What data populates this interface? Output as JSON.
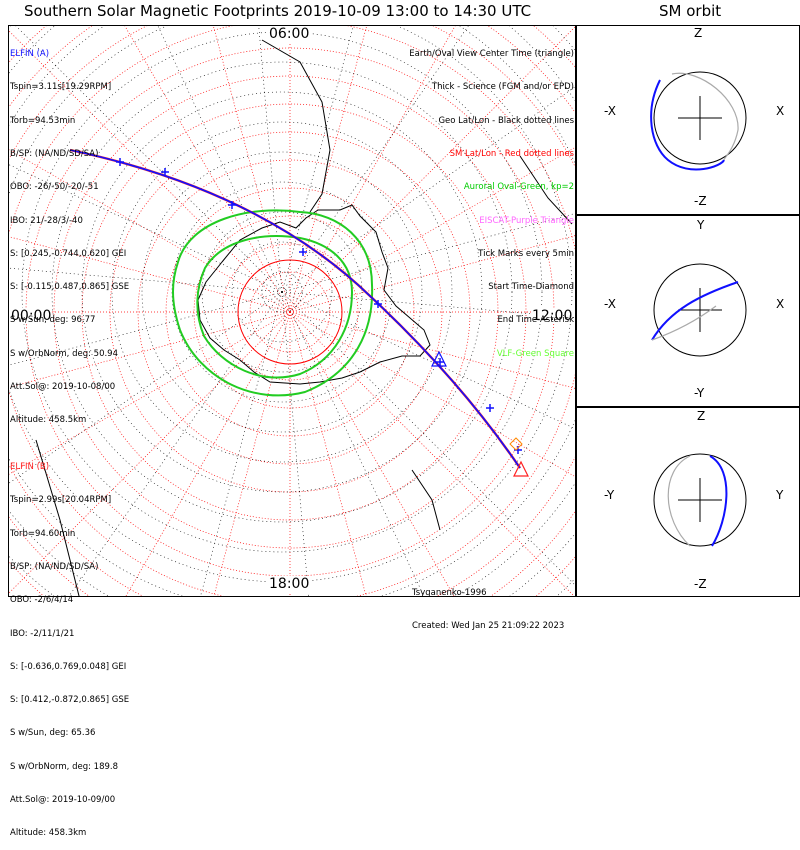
{
  "title": "Southern Solar Magnetic Footprints 2019-10-09 13:00 to 14:30 UTC",
  "orbit_title": "SM orbit",
  "hour_labels": {
    "top": "06:00",
    "left": "00:00",
    "right": "12:00",
    "bottom": "18:00"
  },
  "satellite_a": {
    "name": "ELFIN (A)",
    "color": "#1010ff",
    "lines": [
      "Tspin=3.11s[19.29RPM]",
      "Torb=94.53min",
      "B/SP: (NA/ND/SD/SA)",
      "OBO: -26/-50/-20/-51",
      "IBO: 21/-28/3/-40",
      "S: [0.245,-0.744,0.620] GEI",
      "S: [-0.115,0.487,0.865] GSE",
      "S w/Sun, deg: 96.77",
      "S w/OrbNorm, deg: 50.94",
      "Att.Sol@: 2019-10-08/00",
      "Altitude: 458.5km"
    ]
  },
  "satellite_b": {
    "name": "ELFIN (B)",
    "color": "#ff2020",
    "lines": [
      "Tspin=2.99s[20.04RPM]",
      "Torb=94.60min",
      "B/SP: (NA/ND/SD/SA)",
      "OBO: -2/6/4/14",
      "IBO: -2/11/1/21",
      "S: [-0.636,0.769,0.048] GEI",
      "S: [0.412,-0.872,0.865] GSE",
      "S w/Sun, deg: 65.36",
      "S w/OrbNorm, deg: 189.8",
      "Att.Sol@: 2019-10-09/00",
      "Altitude: 458.3km"
    ]
  },
  "legend": [
    {
      "text": "Earth/Oval View Center Time (triangle)",
      "color": "#000000"
    },
    {
      "text": "Thick - Science (FGM and/or EPD)",
      "color": "#000000"
    },
    {
      "text": "Geo Lat/Lon - Black dotted lines",
      "color": "#000000"
    },
    {
      "text": "SM Lat/Lon - Red dotted lines",
      "color": "#ff0000"
    },
    {
      "text": "Auroral Oval-Green, kp=2",
      "color": "#00cc00"
    },
    {
      "text": "EISCAT-Purple Triangle",
      "color": "#ff66ff"
    },
    {
      "text": "Tick Marks every 5min",
      "color": "#000000"
    },
    {
      "text": "Start Time-Diamond",
      "color": "#000000"
    },
    {
      "text": "End Time-Asterisk",
      "color": "#000000"
    },
    {
      "text": "VLF-Green Square",
      "color": "#66ff33"
    }
  ],
  "credits": [
    "Tsyganenko-1996",
    "Created: Wed Jan 25 21:09:22 2023"
  ],
  "orbit_panels": [
    {
      "top": "Z",
      "bottom": "-Z",
      "left": "-X",
      "right": "X"
    },
    {
      "top": "Y",
      "bottom": "-Y",
      "left": "-X",
      "right": "X"
    },
    {
      "top": "Z",
      "bottom": "-Z",
      "left": "-Y",
      "right": "Y"
    }
  ],
  "colors": {
    "sm_grid": "#ff0000",
    "geo_grid": "#000000",
    "oval": "#22cc22",
    "track_a": "#1010ff",
    "track_b": "#ff2020"
  }
}
